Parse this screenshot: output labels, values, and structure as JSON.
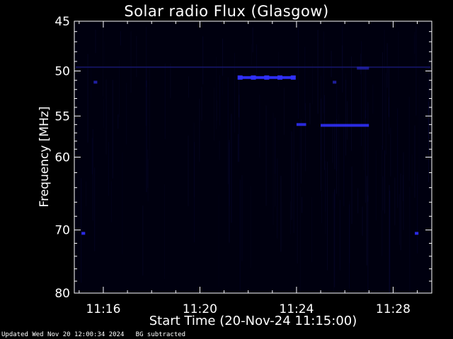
{
  "chart_data": {
    "type": "heatmap",
    "title": "Solar radio Flux (Glasgow)",
    "xlabel": "Start Time (20-Nov-24 11:15:00)",
    "ylabel": "Frequency [MHz]",
    "x_ticks": [
      "11:16",
      "11:20",
      "11:24",
      "11:28"
    ],
    "x_tick_minutes": [
      1,
      5,
      9,
      13
    ],
    "xlim_minutes": [
      -0.2,
      14.6
    ],
    "y_ticks": [
      45,
      50,
      55,
      60,
      70,
      80
    ],
    "ylim": [
      45,
      80
    ],
    "y_scale": "log",
    "bright_features": [
      {
        "x_start": 11.5,
        "x_end": 12.0,
        "freq": 49.7,
        "level": 0.35
      },
      {
        "x_start": 6.6,
        "x_end": 8.9,
        "freq": 50.7,
        "level": 0.9
      },
      {
        "x_start": 9.0,
        "x_end": 9.4,
        "freq": 56.0,
        "level": 0.7
      },
      {
        "x_start": 10.0,
        "x_end": 12.0,
        "freq": 56.1,
        "level": 0.75
      },
      {
        "x_start": 0.1,
        "x_end": 0.25,
        "freq": 70.5,
        "level": 0.8
      },
      {
        "x_start": 13.9,
        "x_end": 14.05,
        "freq": 70.5,
        "level": 0.8
      },
      {
        "x_start": 0.6,
        "x_end": 0.75,
        "freq": 51.2,
        "level": 0.6
      },
      {
        "x_start": 10.5,
        "x_end": 10.65,
        "freq": 51.2,
        "level": 0.5
      }
    ],
    "colors": {
      "background": "#00000f",
      "band": "#1a1a7a",
      "bright": "#3030ff",
      "axes": "#ffffff"
    }
  },
  "labels": {
    "title": "Solar radio Flux (Glasgow)",
    "xlabel": "Start Time (20-Nov-24 11:15:00)",
    "ylabel": "Frequency [MHz]",
    "footer": "Updated Wed Nov 20 12:00:34 2024   BG subtracted"
  }
}
